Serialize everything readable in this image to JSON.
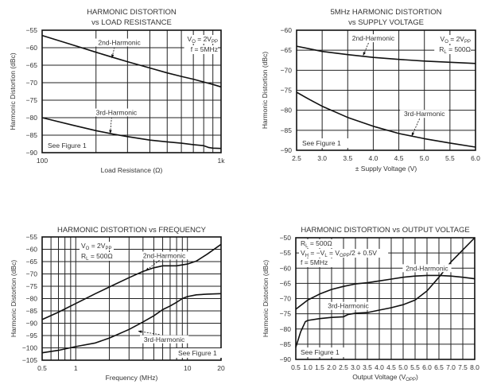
{
  "chart_data": [
    {
      "id": "c1",
      "type": "line",
      "title": [
        "HARMONIC DISTORTION",
        "vs LOAD RESISTANCE"
      ],
      "xlabel": "Load Resistance (Ω)",
      "ylabel": "Harmonic Distortion (dBc)",
      "xscale": "log",
      "xlim": [
        100,
        1000
      ],
      "ylim": [
        -90,
        -55
      ],
      "xticks": [
        {
          "v": 100,
          "label": "100"
        },
        {
          "v": 1000,
          "label": "1k"
        }
      ],
      "xgrid": [
        200,
        300,
        400,
        500,
        600,
        700,
        800,
        900
      ],
      "yticks": [
        -55,
        -60,
        -65,
        -70,
        -75,
        -80,
        -85,
        -90
      ],
      "ytick_labels": [
        "−55",
        "−60",
        "−65",
        "−70",
        "−75",
        "−80",
        "−85",
        "−90"
      ],
      "series": [
        {
          "name": "2nd-Harmonic",
          "x": [
            100,
            150,
            200,
            250,
            300,
            400,
            500,
            600,
            700,
            800,
            900,
            1000
          ],
          "y": [
            -56.5,
            -59.3,
            -61.3,
            -62.8,
            -64.0,
            -65.8,
            -67.2,
            -68.2,
            -69.0,
            -69.8,
            -70.5,
            -71.2
          ]
        },
        {
          "name": "3rd-Harmonic",
          "x": [
            100,
            150,
            200,
            250,
            300,
            400,
            500,
            600,
            700,
            800,
            850,
            900,
            1000
          ],
          "y": [
            -80,
            -82.2,
            -83.7,
            -84.7,
            -85.4,
            -86.4,
            -86.9,
            -87.3,
            -87.7,
            -88.0,
            -88.5,
            -88.7,
            -88.8
          ]
        }
      ],
      "labels": [
        {
          "text": "2nd-Harmonic",
          "at": [
            270,
            -59.2
          ],
          "arrow_to": [
            245,
            -63.0
          ]
        },
        {
          "text": "3rd-Harmonic",
          "at": [
            260,
            -79.2
          ],
          "arrow_to": [
            240,
            -84.6
          ]
        }
      ],
      "annotations": [
        {
          "parts": [
            {
              "t": "V"
            },
            {
              "t": "O",
              "sub": true
            },
            {
              "t": " = 2V"
            },
            {
              "t": "PP",
              "sub": true
            }
          ]
        },
        {
          "parts": [
            {
              "t": "f = 5MHz"
            }
          ]
        }
      ],
      "note": "See Figure 1"
    },
    {
      "id": "c2",
      "type": "line",
      "title": [
        "5MHz HARMONIC DISTORTION",
        "vs SUPPLY VOLTAGE"
      ],
      "xlabel": "± Supply Voltage (V)",
      "ylabel": "Harmonic Distortion (dBc)",
      "xscale": "linear",
      "xlim": [
        2.5,
        6.0
      ],
      "ylim": [
        -90,
        -60
      ],
      "xticks": [
        {
          "v": 2.5,
          "label": "2.5"
        },
        {
          "v": 3.0,
          "label": "3.0"
        },
        {
          "v": 3.5,
          "label": "3.5"
        },
        {
          "v": 4.0,
          "label": "4.0"
        },
        {
          "v": 4.5,
          "label": "4.5"
        },
        {
          "v": 5.0,
          "label": "5.0"
        },
        {
          "v": 5.5,
          "label": "5.5"
        },
        {
          "v": 6.0,
          "label": "6.0"
        }
      ],
      "xgrid": [
        3.0,
        3.5,
        4.0,
        4.5,
        5.0,
        5.5
      ],
      "yticks": [
        -60,
        -65,
        -70,
        -75,
        -80,
        -85,
        -90
      ],
      "ytick_labels": [
        "−60",
        "−65",
        "−70",
        "−75",
        "−80",
        "−85",
        "−90"
      ],
      "series": [
        {
          "name": "2nd-Harmonic",
          "x": [
            2.5,
            3.0,
            3.5,
            4.0,
            4.5,
            5.0,
            5.5,
            6.0
          ],
          "y": [
            -64.0,
            -65.3,
            -66.1,
            -66.8,
            -67.3,
            -67.7,
            -68.0,
            -68.3
          ]
        },
        {
          "name": "3rd-Harmonic",
          "x": [
            2.5,
            2.75,
            3.0,
            3.5,
            4.0,
            4.5,
            5.0,
            5.5,
            6.0
          ],
          "y": [
            -75.5,
            -77.3,
            -79.0,
            -81.8,
            -84.0,
            -85.8,
            -87.1,
            -88.2,
            -89.2
          ]
        }
      ],
      "labels": [
        {
          "text": "2nd-Harmonic",
          "at": [
            4.0,
            -62.6
          ],
          "arrow_to": [
            3.8,
            -66.4
          ]
        },
        {
          "text": "3rd-Harmonic",
          "at": [
            5.0,
            -81.5
          ],
          "arrow_to": [
            4.75,
            -86.5
          ]
        }
      ],
      "annotations": [
        {
          "parts": [
            {
              "t": "V"
            },
            {
              "t": "O",
              "sub": true
            },
            {
              "t": " = 2V"
            },
            {
              "t": "PP",
              "sub": true
            }
          ]
        },
        {
          "parts": [
            {
              "t": "R"
            },
            {
              "t": "L",
              "sub": true
            },
            {
              "t": " = 500Ω"
            }
          ]
        }
      ],
      "note": "See Figure 1"
    },
    {
      "id": "c3",
      "type": "line",
      "title": [
        "HARMONIC DISTORTION vs FREQUENCY"
      ],
      "xlabel": "Frequency (MHz)",
      "ylabel": "Harmonic Distortion (dBc)",
      "xscale": "log",
      "xlim": [
        0.5,
        20
      ],
      "ylim": [
        -105,
        -55
      ],
      "xticks": [
        {
          "v": 0.5,
          "label": "0.5"
        },
        {
          "v": 1,
          "label": "1"
        },
        {
          "v": 10,
          "label": "10"
        },
        {
          "v": 20,
          "label": "20"
        }
      ],
      "xgrid": [
        0.6,
        0.7,
        0.8,
        0.9,
        1,
        2,
        3,
        4,
        5,
        6,
        7,
        8,
        9,
        10
      ],
      "yticks": [
        -55,
        -60,
        -65,
        -70,
        -75,
        -80,
        -85,
        -90,
        -95,
        -100,
        -105
      ],
      "ytick_labels": [
        "−55",
        "−60",
        "−65",
        "−70",
        "−75",
        "−80",
        "−85",
        "−90",
        "−95",
        "−100",
        "−105"
      ],
      "series": [
        {
          "name": "2nd-Harmonic",
          "x": [
            0.5,
            0.7,
            1,
            1.5,
            2,
            3,
            4,
            5,
            6,
            8,
            10,
            12,
            15,
            20
          ],
          "y": [
            -88.5,
            -85.5,
            -82,
            -78,
            -75.3,
            -71.5,
            -69,
            -67.5,
            -66.7,
            -66.7,
            -66,
            -64.8,
            -62,
            -58
          ]
        },
        {
          "name": "3rd-Harmonic",
          "x": [
            0.5,
            0.7,
            1,
            1.5,
            2,
            3,
            4,
            5,
            6,
            7,
            8,
            9,
            10,
            12,
            15,
            20
          ],
          "y": [
            -102,
            -101,
            -99.5,
            -98,
            -96,
            -92.5,
            -89.5,
            -87,
            -84.5,
            -83,
            -81.5,
            -80,
            -79.2,
            -78.5,
            -78.2,
            -78
          ]
        }
      ],
      "labels": [
        {
          "text": "2nd-Harmonic",
          "at": [
            6.2,
            -63.5
          ],
          "arrow_to": [
            4.2,
            -68.8
          ]
        },
        {
          "text": "3rd-Harmonic",
          "at": [
            6.2,
            -97.5
          ],
          "arrow_to": [
            3.6,
            -93.2
          ]
        }
      ],
      "annotations": [
        {
          "parts": [
            {
              "t": "V"
            },
            {
              "t": "O",
              "sub": true
            },
            {
              "t": " = 2V"
            },
            {
              "t": "PP",
              "sub": true
            }
          ]
        },
        {
          "parts": [
            {
              "t": "R"
            },
            {
              "t": "L",
              "sub": true
            },
            {
              "t": " = 500Ω"
            }
          ]
        }
      ],
      "note": "See Figure 1"
    },
    {
      "id": "c4",
      "type": "line",
      "title": [
        "HARMONIC DISTORTION vs OUTPUT VOLTAGE"
      ],
      "xlabel": "Output Voltage (V",
      "xlabel_sub": "OPP",
      "xlabel_end": ")",
      "ylabel": "Harmonic Distortion (dBc)",
      "xscale": "linear",
      "xlim": [
        0.5,
        8.0
      ],
      "ylim": [
        -90,
        -50
      ],
      "xticks": [
        {
          "v": 0.5,
          "label": "0.5"
        },
        {
          "v": 1.0,
          "label": "1.0"
        },
        {
          "v": 1.5,
          "label": "1.5"
        },
        {
          "v": 2.0,
          "label": "2.0"
        },
        {
          "v": 2.5,
          "label": "2.5"
        },
        {
          "v": 3.0,
          "label": "3.0"
        },
        {
          "v": 3.5,
          "label": "3.5"
        },
        {
          "v": 4.0,
          "label": "4.0"
        },
        {
          "v": 4.5,
          "label": "4.5"
        },
        {
          "v": 5.0,
          "label": "5.0"
        },
        {
          "v": 5.5,
          "label": "5.5"
        },
        {
          "v": 6.0,
          "label": "6.0"
        },
        {
          "v": 6.5,
          "label": "6.5"
        },
        {
          "v": 7.0,
          "label": "7.0"
        },
        {
          "v": 7.5,
          "label": "7.5"
        },
        {
          "v": 8.0,
          "label": "8.0"
        }
      ],
      "xgrid": [
        1.0,
        1.5,
        2.0,
        2.5,
        3.0,
        3.5,
        4.0,
        4.5,
        5.0,
        5.5,
        6.0,
        6.5,
        7.0,
        7.5
      ],
      "yticks": [
        -50,
        -55,
        -60,
        -65,
        -70,
        -75,
        -80,
        -85,
        -90
      ],
      "ytick_labels": [
        "−50",
        "−55",
        "−60",
        "−65",
        "−70",
        "−75",
        "−80",
        "−85",
        "−90"
      ],
      "series": [
        {
          "name": "2nd-Harmonic",
          "x": [
            0.5,
            1.0,
            1.5,
            2.0,
            2.5,
            3.0,
            3.5,
            4.0,
            4.5,
            5.0,
            5.5,
            6.0,
            6.5,
            7.0,
            7.5,
            8.0
          ],
          "y": [
            -73.5,
            -70.5,
            -68.5,
            -67,
            -66,
            -65.2,
            -64.8,
            -64.2,
            -63.6,
            -63,
            -62.6,
            -62.4,
            -62.4,
            -62.6,
            -63,
            -63.5
          ]
        },
        {
          "name": "3rd-Harmonic",
          "x": [
            0.5,
            0.7,
            0.9,
            1.0,
            1.5,
            2.0,
            2.5,
            2.7,
            3.0,
            3.5,
            4.0,
            4.5,
            5.0,
            5.5,
            6.0,
            6.5,
            7.0,
            7.5,
            8.0
          ],
          "y": [
            -86,
            -81,
            -77.6,
            -77.2,
            -76.6,
            -76.2,
            -76,
            -75.2,
            -74.8,
            -74.6,
            -73.8,
            -73,
            -72,
            -70.5,
            -67.5,
            -63,
            -58,
            -54,
            -50
          ]
        }
      ],
      "labels": [
        {
          "text": "2nd-Harmonic",
          "at": [
            6.0,
            -60.8
          ]
        },
        {
          "text": "3rd-Harmonic",
          "at": [
            2.7,
            -73.2
          ]
        }
      ],
      "annotations": [
        {
          "parts": [
            {
              "t": "R"
            },
            {
              "t": "L",
              "sub": true
            },
            {
              "t": " = 500Ω"
            }
          ]
        },
        {
          "parts": [
            {
              "t": "V"
            },
            {
              "t": "H",
              "sub": true
            },
            {
              "t": " = −V"
            },
            {
              "t": "L",
              "sub": true
            },
            {
              "t": " = V"
            },
            {
              "t": "OPP",
              "sub": true
            },
            {
              "t": "/2 + 0.5V"
            }
          ]
        },
        {
          "parts": [
            {
              "t": "f = 5MHz"
            }
          ]
        }
      ],
      "note": "See Figure 1"
    }
  ]
}
